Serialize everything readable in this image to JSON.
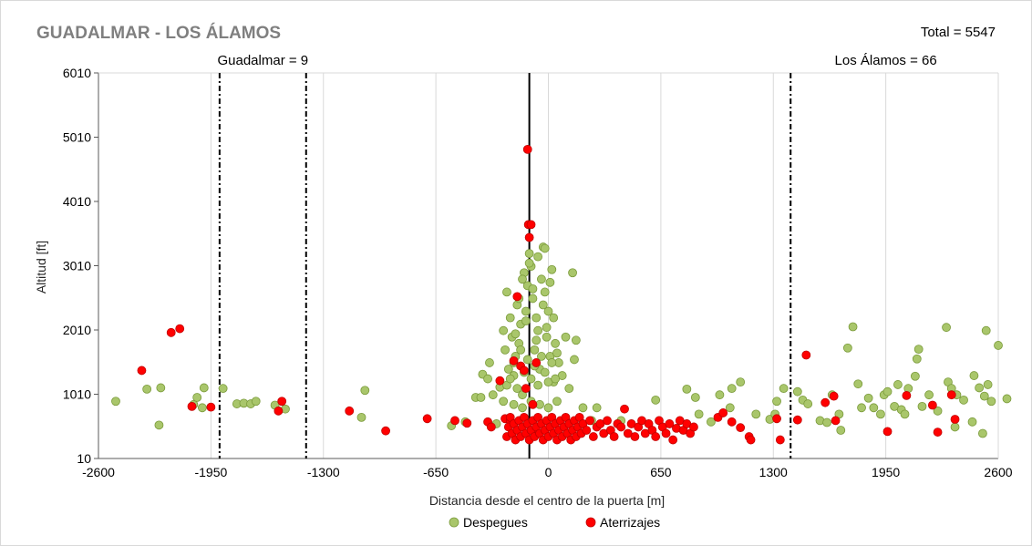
{
  "chart_data": {
    "type": "scatter",
    "title": "GUADALMAR  - LOS ÁLAMOS",
    "total_label": "Total = 5547",
    "xlabel": "Distancia desde el centro de la puerta [m]",
    "ylabel": "Altitud [ft]",
    "xlim": [
      -2600,
      2600
    ],
    "ylim": [
      10,
      6010
    ],
    "xticks": [
      -2600,
      -1950,
      -1300,
      -650,
      0,
      650,
      1300,
      1950,
      2600
    ],
    "xtick_labels": [
      "-2600",
      "-1950",
      "-1300",
      "-650",
      "0",
      "650",
      "1300",
      "1950",
      "2600"
    ],
    "yticks": [
      10,
      1010,
      2010,
      3010,
      4010,
      5010,
      6010
    ],
    "ytick_labels": [
      "10",
      "1010",
      "2010",
      "3010",
      "4010",
      "5010",
      "6010"
    ],
    "grid": "vertical",
    "legend_position": "bottom",
    "gate_center_x": -110,
    "boundaries": [
      {
        "x": -1900,
        "style": "dash-dot"
      },
      {
        "x": -1400,
        "style": "dash-dot"
      },
      {
        "x": 1400,
        "style": "dash-dot"
      }
    ],
    "zone_labels": [
      {
        "text": "Guadalmar = 9",
        "x": -1650
      },
      {
        "text": "Los Álamos = 66",
        "x": 1950
      }
    ],
    "series": [
      {
        "name": "Despegues",
        "color": "#a9c66b",
        "edge": "#7a9a3a",
        "points": [
          [
            -2500,
            900
          ],
          [
            -2320,
            1090
          ],
          [
            -2250,
            530
          ],
          [
            -2240,
            1110
          ],
          [
            -2050,
            850
          ],
          [
            -2030,
            960
          ],
          [
            -2000,
            800
          ],
          [
            -1990,
            1110
          ],
          [
            -1880,
            1100
          ],
          [
            -1800,
            860
          ],
          [
            -1760,
            870
          ],
          [
            -1720,
            860
          ],
          [
            -1690,
            900
          ],
          [
            -1580,
            840
          ],
          [
            -1520,
            780
          ],
          [
            -1060,
            1070
          ],
          [
            -1080,
            650
          ],
          [
            -560,
            520
          ],
          [
            -480,
            580
          ],
          [
            -420,
            960
          ],
          [
            -390,
            960
          ],
          [
            -380,
            1320
          ],
          [
            -350,
            1250
          ],
          [
            -340,
            1500
          ],
          [
            -320,
            1000
          ],
          [
            -300,
            550
          ],
          [
            -280,
            1120
          ],
          [
            -260,
            2000
          ],
          [
            -250,
            1700
          ],
          [
            -240,
            2600
          ],
          [
            -230,
            1400
          ],
          [
            -220,
            2200
          ],
          [
            -210,
            1900
          ],
          [
            -200,
            1300
          ],
          [
            -190,
            1600
          ],
          [
            -180,
            2400
          ],
          [
            -170,
            1800
          ],
          [
            -160,
            2100
          ],
          [
            -150,
            1000
          ],
          [
            -140,
            2900
          ],
          [
            -130,
            2300
          ],
          [
            -120,
            2700
          ],
          [
            -110,
            3200
          ],
          [
            -100,
            3000
          ],
          [
            -90,
            2500
          ],
          [
            -80,
            1700
          ],
          [
            -70,
            2200
          ],
          [
            -60,
            2000
          ],
          [
            -50,
            1400
          ],
          [
            -40,
            2800
          ],
          [
            -30,
            3300
          ],
          [
            -20,
            2600
          ],
          [
            -10,
            1900
          ],
          [
            0,
            2300
          ],
          [
            10,
            1600
          ],
          [
            20,
            2950
          ],
          [
            30,
            1200
          ],
          [
            40,
            1800
          ],
          [
            60,
            1500
          ],
          [
            80,
            1300
          ],
          [
            100,
            1900
          ],
          [
            120,
            1100
          ],
          [
            140,
            2900
          ],
          [
            150,
            1550
          ],
          [
            160,
            1850
          ],
          [
            -240,
            1150
          ],
          [
            -220,
            1250
          ],
          [
            -200,
            1500
          ],
          [
            -180,
            1100
          ],
          [
            -160,
            1700
          ],
          [
            -140,
            1350
          ],
          [
            -120,
            1550
          ],
          [
            -100,
            1250
          ],
          [
            -80,
            1450
          ],
          [
            -60,
            1150
          ],
          [
            -40,
            1600
          ],
          [
            -20,
            1350
          ],
          [
            0,
            1200
          ],
          [
            20,
            1500
          ],
          [
            40,
            1250
          ],
          [
            -190,
            1950
          ],
          [
            -130,
            2150
          ],
          [
            -70,
            1850
          ],
          [
            -10,
            2050
          ],
          [
            50,
            1650
          ],
          [
            -170,
            2500
          ],
          [
            -90,
            2650
          ],
          [
            -30,
            2400
          ],
          [
            30,
            2200
          ],
          [
            -110,
            3050
          ],
          [
            -60,
            3150
          ],
          [
            -20,
            3280
          ],
          [
            -150,
            2800
          ],
          [
            10,
            2750
          ],
          [
            -260,
            900
          ],
          [
            -200,
            850
          ],
          [
            -150,
            800
          ],
          [
            -100,
            900
          ],
          [
            -50,
            850
          ],
          [
            0,
            800
          ],
          [
            50,
            900
          ],
          [
            200,
            800
          ],
          [
            250,
            600
          ],
          [
            280,
            800
          ],
          [
            420,
            600
          ],
          [
            620,
            920
          ],
          [
            800,
            1090
          ],
          [
            850,
            960
          ],
          [
            870,
            700
          ],
          [
            940,
            580
          ],
          [
            990,
            1000
          ],
          [
            1050,
            800
          ],
          [
            1060,
            1100
          ],
          [
            1110,
            1200
          ],
          [
            1200,
            700
          ],
          [
            1280,
            620
          ],
          [
            1310,
            700
          ],
          [
            1320,
            900
          ],
          [
            1360,
            1100
          ],
          [
            1440,
            1050
          ],
          [
            1470,
            920
          ],
          [
            1500,
            860
          ],
          [
            1570,
            600
          ],
          [
            1610,
            570
          ],
          [
            1640,
            1000
          ],
          [
            1680,
            700
          ],
          [
            1690,
            450
          ],
          [
            1730,
            1730
          ],
          [
            1760,
            2060
          ],
          [
            1790,
            1170
          ],
          [
            1810,
            800
          ],
          [
            1850,
            950
          ],
          [
            1880,
            800
          ],
          [
            1920,
            700
          ],
          [
            1940,
            1000
          ],
          [
            1960,
            1050
          ],
          [
            2000,
            820
          ],
          [
            2020,
            1160
          ],
          [
            2040,
            770
          ],
          [
            2060,
            700
          ],
          [
            2080,
            1100
          ],
          [
            2120,
            1290
          ],
          [
            2130,
            1560
          ],
          [
            2140,
            1710
          ],
          [
            2160,
            820
          ],
          [
            2200,
            1000
          ],
          [
            2250,
            750
          ],
          [
            2300,
            2050
          ],
          [
            2310,
            1200
          ],
          [
            2330,
            1100
          ],
          [
            2350,
            500
          ],
          [
            2360,
            1000
          ],
          [
            2400,
            920
          ],
          [
            2450,
            580
          ],
          [
            2460,
            1300
          ],
          [
            2490,
            1110
          ],
          [
            2510,
            400
          ],
          [
            2520,
            980
          ],
          [
            2530,
            2000
          ],
          [
            2540,
            1160
          ],
          [
            2560,
            900
          ],
          [
            2600,
            1770
          ],
          [
            2650,
            940
          ]
        ]
      },
      {
        "name": "Aterrizajes",
        "color": "#ff0000",
        "edge": "#c00000",
        "points": [
          [
            -2350,
            1380
          ],
          [
            -2180,
            1970
          ],
          [
            -2130,
            2030
          ],
          [
            -2060,
            820
          ],
          [
            -1950,
            810
          ],
          [
            -1540,
            900
          ],
          [
            -1560,
            750
          ],
          [
            -1150,
            750
          ],
          [
            -940,
            440
          ],
          [
            -700,
            630
          ],
          [
            -540,
            600
          ],
          [
            -470,
            560
          ],
          [
            -350,
            580
          ],
          [
            -330,
            500
          ],
          [
            -280,
            1220
          ],
          [
            -250,
            630
          ],
          [
            -220,
            600
          ],
          [
            -200,
            1530
          ],
          [
            -180,
            2530
          ],
          [
            -160,
            1450
          ],
          [
            -140,
            1380
          ],
          [
            -130,
            1100
          ],
          [
            -120,
            4820
          ],
          [
            -115,
            3650
          ],
          [
            -110,
            3450
          ],
          [
            -100,
            3650
          ],
          [
            -90,
            850
          ],
          [
            -80,
            420
          ],
          [
            -70,
            1500
          ],
          [
            -240,
            350
          ],
          [
            -230,
            500
          ],
          [
            -220,
            650
          ],
          [
            -210,
            400
          ],
          [
            -200,
            550
          ],
          [
            -190,
            300
          ],
          [
            -180,
            450
          ],
          [
            -170,
            600
          ],
          [
            -160,
            350
          ],
          [
            -150,
            500
          ],
          [
            -140,
            650
          ],
          [
            -130,
            400
          ],
          [
            -120,
            550
          ],
          [
            -110,
            300
          ],
          [
            -100,
            450
          ],
          [
            -90,
            600
          ],
          [
            -80,
            350
          ],
          [
            -70,
            500
          ],
          [
            -60,
            650
          ],
          [
            -50,
            400
          ],
          [
            -40,
            550
          ],
          [
            -30,
            300
          ],
          [
            -20,
            450
          ],
          [
            -10,
            600
          ],
          [
            0,
            350
          ],
          [
            10,
            500
          ],
          [
            20,
            650
          ],
          [
            30,
            400
          ],
          [
            40,
            550
          ],
          [
            50,
            300
          ],
          [
            60,
            450
          ],
          [
            70,
            600
          ],
          [
            80,
            350
          ],
          [
            90,
            500
          ],
          [
            100,
            650
          ],
          [
            110,
            400
          ],
          [
            120,
            550
          ],
          [
            130,
            300
          ],
          [
            140,
            450
          ],
          [
            150,
            600
          ],
          [
            160,
            350
          ],
          [
            170,
            500
          ],
          [
            180,
            650
          ],
          [
            190,
            400
          ],
          [
            200,
            550
          ],
          [
            220,
            450
          ],
          [
            240,
            600
          ],
          [
            260,
            350
          ],
          [
            280,
            500
          ],
          [
            300,
            550
          ],
          [
            320,
            400
          ],
          [
            340,
            600
          ],
          [
            360,
            450
          ],
          [
            380,
            350
          ],
          [
            400,
            550
          ],
          [
            420,
            500
          ],
          [
            440,
            780
          ],
          [
            460,
            400
          ],
          [
            480,
            550
          ],
          [
            500,
            350
          ],
          [
            520,
            500
          ],
          [
            540,
            600
          ],
          [
            560,
            400
          ],
          [
            580,
            550
          ],
          [
            600,
            450
          ],
          [
            620,
            350
          ],
          [
            640,
            600
          ],
          [
            660,
            500
          ],
          [
            680,
            400
          ],
          [
            700,
            550
          ],
          [
            720,
            300
          ],
          [
            740,
            480
          ],
          [
            760,
            600
          ],
          [
            780,
            450
          ],
          [
            800,
            550
          ],
          [
            820,
            400
          ],
          [
            840,
            500
          ],
          [
            980,
            650
          ],
          [
            1010,
            720
          ],
          [
            1060,
            580
          ],
          [
            1110,
            490
          ],
          [
            1160,
            350
          ],
          [
            1170,
            300
          ],
          [
            1320,
            630
          ],
          [
            1340,
            300
          ],
          [
            1440,
            610
          ],
          [
            1490,
            1620
          ],
          [
            1600,
            880
          ],
          [
            1650,
            980
          ],
          [
            1660,
            600
          ],
          [
            1960,
            430
          ],
          [
            2070,
            990
          ],
          [
            2220,
            840
          ],
          [
            2250,
            420
          ],
          [
            2330,
            1000
          ],
          [
            2350,
            620
          ]
        ]
      }
    ]
  }
}
